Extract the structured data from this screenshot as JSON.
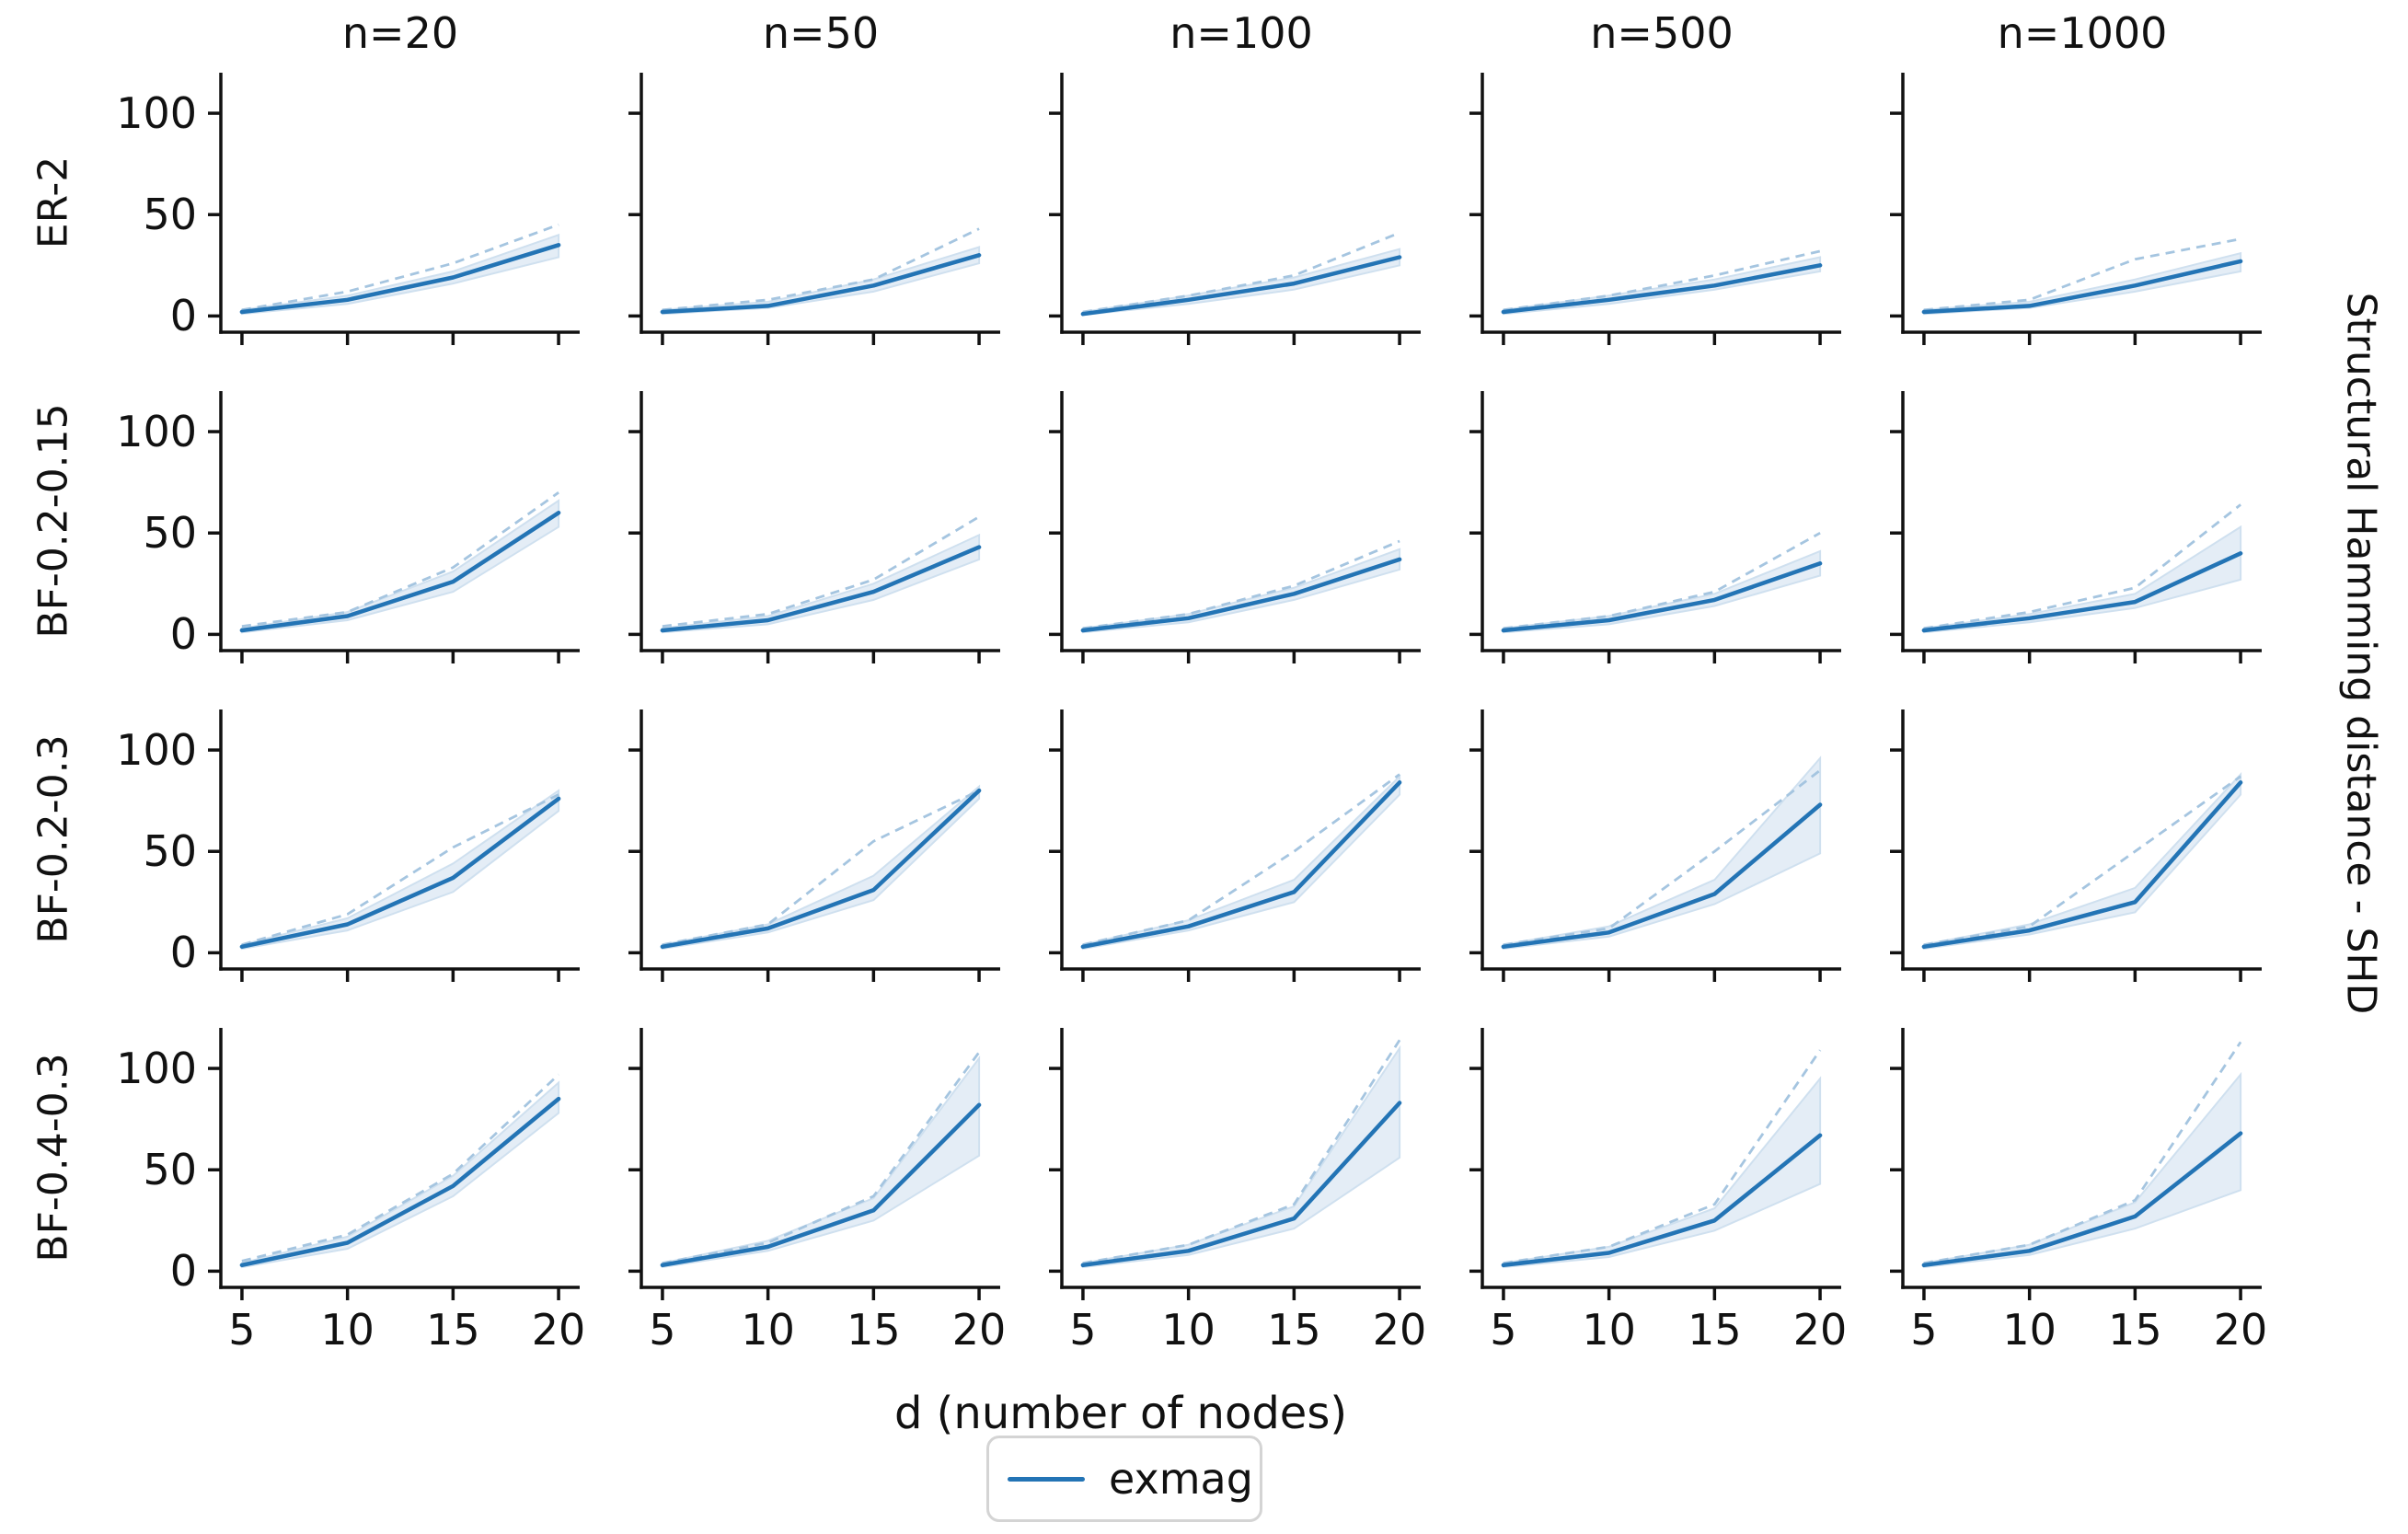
{
  "figure": {
    "xlabel": "d (number of nodes)",
    "right_ylabel": "Structural Hamming distance - SHD",
    "legend": {
      "label": "exmag"
    }
  },
  "colors": {
    "exmag_line": "#2374b5",
    "dashed_reference_line": "#a5c5e0",
    "ci_band_fill": "#e4edf6",
    "ci_band_edge": "#cfe0ef",
    "axis": "#111111",
    "legend_border": "#d4d4d4"
  },
  "chart_data": {
    "type": "line",
    "layout": "4x5 small-multiples grid",
    "title": "",
    "xlabel": "d (number of nodes)",
    "right_ylabel": "Structural Hamming distance - SHD",
    "legend_entries": [
      "exmag"
    ],
    "legend_position": "lower center",
    "series_note": "each panel: solid 'exmag' line with shaded confidence band, plus an unlabeled light-blue dashed reference line",
    "grid": false,
    "x": [
      5,
      10,
      15,
      20
    ],
    "xticks": [
      5,
      10,
      15,
      20
    ],
    "yticks": [
      0,
      50,
      100
    ],
    "xlim": [
      4,
      21
    ],
    "ylim": [
      -8,
      120
    ],
    "columns": [
      "n=20",
      "n=50",
      "n=100",
      "n=500",
      "n=1000"
    ],
    "rows": [
      "ER-2",
      "BF-0.2-0.15",
      "BF-0.2-0.3",
      "BF-0.4-0.3"
    ],
    "cells": {
      "ER-2": {
        "n=20": {
          "exmag": [
            2,
            8,
            19,
            35
          ],
          "ci_lower": [
            1,
            6,
            16,
            29
          ],
          "ci_upper": [
            3,
            10,
            22,
            40
          ],
          "dashed_ref": [
            3,
            12,
            26,
            45
          ]
        },
        "n=50": {
          "exmag": [
            2,
            5,
            15,
            30
          ],
          "ci_lower": [
            1,
            4,
            12,
            26
          ],
          "ci_upper": [
            3,
            7,
            18,
            34
          ],
          "dashed_ref": [
            3,
            8,
            18,
            43
          ]
        },
        "n=100": {
          "exmag": [
            1,
            8,
            16,
            29
          ],
          "ci_lower": [
            0.5,
            6,
            13,
            25
          ],
          "ci_upper": [
            2,
            10,
            19,
            33
          ],
          "dashed_ref": [
            2,
            10,
            20,
            41
          ]
        },
        "n=500": {
          "exmag": [
            2,
            8,
            15,
            25
          ],
          "ci_lower": [
            1,
            6,
            13,
            22
          ],
          "ci_upper": [
            3,
            10,
            18,
            29
          ],
          "dashed_ref": [
            3,
            10,
            20,
            32
          ]
        },
        "n=1000": {
          "exmag": [
            2,
            5,
            15,
            27
          ],
          "ci_lower": [
            1,
            4,
            12,
            22
          ],
          "ci_upper": [
            3,
            7,
            18,
            31
          ],
          "dashed_ref": [
            3,
            8,
            28,
            38
          ]
        }
      },
      "BF-0.2-0.15": {
        "n=20": {
          "exmag": [
            2,
            9,
            26,
            60
          ],
          "ci_lower": [
            1,
            7,
            21,
            53
          ],
          "ci_upper": [
            3,
            11,
            31,
            66
          ],
          "dashed_ref": [
            4,
            11,
            33,
            70
          ]
        },
        "n=50": {
          "exmag": [
            2,
            7,
            21,
            43
          ],
          "ci_lower": [
            1,
            5,
            17,
            37
          ],
          "ci_upper": [
            3,
            9,
            25,
            49
          ],
          "dashed_ref": [
            4,
            10,
            27,
            58
          ]
        },
        "n=100": {
          "exmag": [
            2,
            8,
            20,
            37
          ],
          "ci_lower": [
            1,
            6,
            17,
            32
          ],
          "ci_upper": [
            3,
            10,
            23,
            42
          ],
          "dashed_ref": [
            3,
            10,
            24,
            46
          ]
        },
        "n=500": {
          "exmag": [
            2,
            7,
            17,
            35
          ],
          "ci_lower": [
            1,
            5,
            14,
            29
          ],
          "ci_upper": [
            3,
            9,
            20,
            41
          ],
          "dashed_ref": [
            3,
            9,
            21,
            50
          ]
        },
        "n=1000": {
          "exmag": [
            2,
            8,
            16,
            40
          ],
          "ci_lower": [
            1,
            6,
            13,
            27
          ],
          "ci_upper": [
            3,
            10,
            20,
            53
          ],
          "dashed_ref": [
            3,
            11,
            23,
            64
          ]
        }
      },
      "BF-0.2-0.3": {
        "n=20": {
          "exmag": [
            3,
            14,
            37,
            76
          ],
          "ci_lower": [
            2,
            11,
            30,
            70
          ],
          "ci_upper": [
            4,
            17,
            44,
            80
          ],
          "dashed_ref": [
            4,
            19,
            52,
            78
          ]
        },
        "n=50": {
          "exmag": [
            3,
            12,
            31,
            80
          ],
          "ci_lower": [
            2,
            10,
            26,
            76
          ],
          "ci_upper": [
            4,
            14,
            38,
            82
          ],
          "dashed_ref": [
            4,
            14,
            55,
            80
          ]
        },
        "n=100": {
          "exmag": [
            3,
            13,
            30,
            84
          ],
          "ci_lower": [
            2,
            11,
            25,
            78
          ],
          "ci_upper": [
            4,
            16,
            36,
            87
          ],
          "dashed_ref": [
            4,
            16,
            50,
            88
          ]
        },
        "n=500": {
          "exmag": [
            3,
            10,
            29,
            73
          ],
          "ci_lower": [
            2,
            8,
            24,
            49
          ],
          "ci_upper": [
            4,
            13,
            36,
            96
          ],
          "dashed_ref": [
            4,
            12,
            50,
            90
          ]
        },
        "n=1000": {
          "exmag": [
            3,
            11,
            25,
            84
          ],
          "ci_lower": [
            2,
            9,
            20,
            78
          ],
          "ci_upper": [
            4,
            14,
            32,
            88
          ],
          "dashed_ref": [
            4,
            13,
            50,
            87
          ]
        }
      },
      "BF-0.4-0.3": {
        "n=20": {
          "exmag": [
            3,
            14,
            42,
            85
          ],
          "ci_lower": [
            2,
            11,
            37,
            78
          ],
          "ci_upper": [
            4,
            17,
            47,
            93
          ],
          "dashed_ref": [
            5,
            18,
            48,
            97
          ]
        },
        "n=50": {
          "exmag": [
            3,
            12,
            30,
            82
          ],
          "ci_lower": [
            2,
            10,
            25,
            57
          ],
          "ci_upper": [
            4,
            15,
            36,
            105
          ],
          "dashed_ref": [
            4,
            14,
            37,
            108
          ]
        },
        "n=100": {
          "exmag": [
            3,
            10,
            26,
            83
          ],
          "ci_lower": [
            2,
            8,
            21,
            56
          ],
          "ci_upper": [
            4,
            13,
            32,
            110
          ],
          "dashed_ref": [
            4,
            13,
            33,
            114
          ]
        },
        "n=500": {
          "exmag": [
            3,
            9,
            25,
            67
          ],
          "ci_lower": [
            2,
            7,
            20,
            43
          ],
          "ci_upper": [
            4,
            12,
            31,
            95
          ],
          "dashed_ref": [
            4,
            12,
            33,
            109
          ]
        },
        "n=1000": {
          "exmag": [
            3,
            10,
            27,
            68
          ],
          "ci_lower": [
            2,
            8,
            21,
            40
          ],
          "ci_upper": [
            4,
            13,
            34,
            97
          ],
          "dashed_ref": [
            4,
            13,
            35,
            113
          ]
        }
      }
    }
  }
}
